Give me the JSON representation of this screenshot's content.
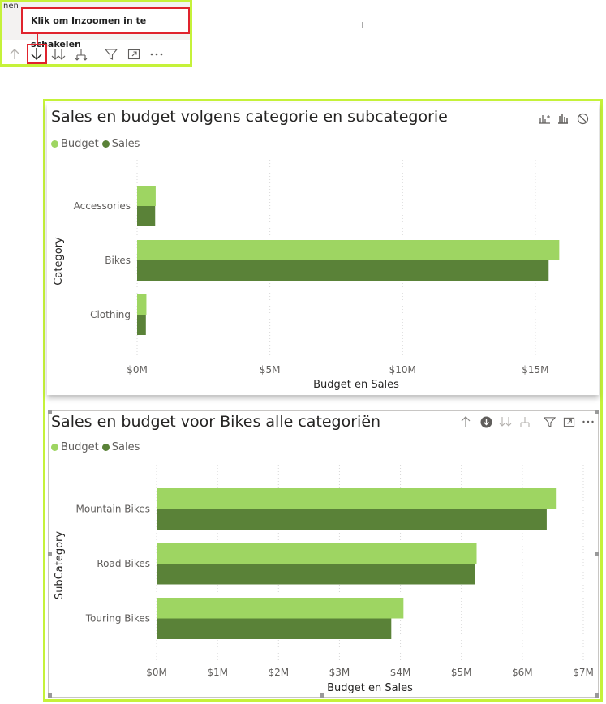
{
  "toolbar": {
    "partial_label": "nen",
    "tooltip": "Klik om Inzoomen in te schakelen",
    "icons": [
      "arrow-up-icon",
      "arrow-down-icon",
      "double-arrow-down-icon",
      "hierarchy-expand-icon",
      "filter-icon",
      "focus-mode-icon",
      "more-options-icon"
    ]
  },
  "colors": {
    "budget": "#9ed562",
    "sales": "#5a8238",
    "frame": "#c5f23a",
    "highlight": "#e0232d"
  },
  "visual1": {
    "title": "Sales en budget volgens categorie en subcategorie",
    "header_icons": [
      "drill-chart-icon",
      "bar-chart-icon",
      "no-drill-icon"
    ],
    "legend": [
      "Budget",
      "Sales"
    ],
    "chart_data": {
      "type": "bar",
      "orientation": "horizontal",
      "categories": [
        "Accessories",
        "Bikes",
        "Clothing"
      ],
      "series": [
        {
          "name": "Budget",
          "values": [
            0.7,
            15.9,
            0.35
          ]
        },
        {
          "name": "Sales",
          "values": [
            0.68,
            15.5,
            0.33
          ]
        }
      ],
      "xlabel": "Budget en Sales",
      "ylabel": "Category",
      "xticks": [
        "$0M",
        "$5M",
        "$10M",
        "$15M"
      ],
      "xtick_values": [
        0,
        5,
        10,
        15
      ],
      "xlim": [
        0,
        16.5
      ],
      "unit": "M$",
      "grid": "vertical-dotted",
      "legend_position": "top-left"
    }
  },
  "visual2": {
    "title": "Sales en budget voor Bikes alle categoriën",
    "header_icons": [
      "arrow-up-icon",
      "drill-down-active-icon",
      "double-arrow-down-icon",
      "hierarchy-expand-icon",
      "filter-icon",
      "focus-mode-icon",
      "more-options-icon"
    ],
    "legend": [
      "Budget",
      "Sales"
    ],
    "chart_data": {
      "type": "bar",
      "orientation": "horizontal",
      "categories": [
        "Mountain Bikes",
        "Road Bikes",
        "Touring Bikes"
      ],
      "series": [
        {
          "name": "Budget",
          "values": [
            6.55,
            5.25,
            4.05
          ]
        },
        {
          "name": "Sales",
          "values": [
            6.4,
            5.23,
            3.85
          ]
        }
      ],
      "xlabel": "Budget en Sales",
      "ylabel": "SubCategory",
      "xticks": [
        "$0M",
        "$1M",
        "$2M",
        "$3M",
        "$4M",
        "$5M",
        "$6M",
        "$7M"
      ],
      "xtick_values": [
        0,
        1,
        2,
        3,
        4,
        5,
        6,
        7
      ],
      "xlim": [
        0,
        7
      ],
      "unit": "M$",
      "grid": "vertical-dotted",
      "legend_position": "top-left"
    }
  }
}
